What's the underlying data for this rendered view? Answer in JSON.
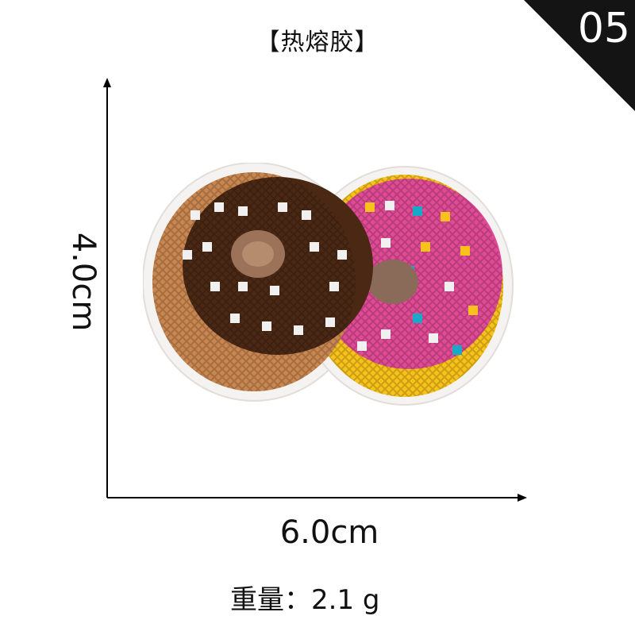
{
  "header": {
    "title": "【热熔胶】"
  },
  "badge": {
    "number": "05"
  },
  "dimensions": {
    "height_label": "4.0cm",
    "width_label": "6.0cm"
  },
  "weight": {
    "label": "重量：",
    "value": "2.1 g"
  },
  "product": {
    "icon": "cross-stitch-donut-patch-icon",
    "colors": {
      "brown": "#4a2814",
      "caramel": "#c98650",
      "pink": "#e14a96",
      "yellow": "#f8c21a",
      "cyan": "#18a8c8",
      "white": "#f0f0f0"
    }
  }
}
